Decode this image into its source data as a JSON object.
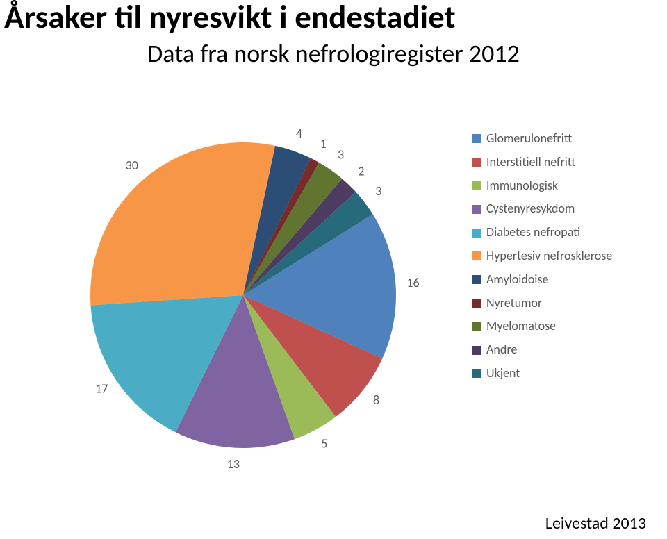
{
  "title": "Årsaker til nyresvikt i endestadiet",
  "subtitle": "Data fra norsk nefrologiregister 2012",
  "title_fontsize": 47,
  "subtitle_fontsize": 36,
  "source": "Leivestad 2013",
  "chart": {
    "type": "pie",
    "start_angle_deg": 58,
    "direction": "clockwise",
    "label_fontsize": 18,
    "label_color": "#595959",
    "background_color": "#ffffff",
    "slices": [
      {
        "label": "Glomerulonefritt",
        "value": 16,
        "color": "#4f81bd"
      },
      {
        "label": "Interstitiell nefritt",
        "value": 8,
        "color": "#c0504d"
      },
      {
        "label": "Immunologisk",
        "value": 5,
        "color": "#9bbb59"
      },
      {
        "label": "Cystenyresykdom",
        "value": 13,
        "color": "#8064a2"
      },
      {
        "label": "Diabetes nefropati",
        "value": 17,
        "color": "#4bacc6"
      },
      {
        "label": "Hypertesiv nefrosklerose",
        "value": 30,
        "color": "#f79646"
      },
      {
        "label": "Amyloidoise",
        "value": 4,
        "color": "#2c4d75"
      },
      {
        "label": "Nyretumor",
        "value": 1,
        "color": "#772c2a"
      },
      {
        "label": "Myelomatose",
        "value": 3,
        "color": "#5f7530"
      },
      {
        "label": "Andre",
        "value": 2,
        "color": "#4d3b62"
      },
      {
        "label": "Ukjent",
        "value": 3,
        "color": "#276a7c"
      }
    ]
  }
}
